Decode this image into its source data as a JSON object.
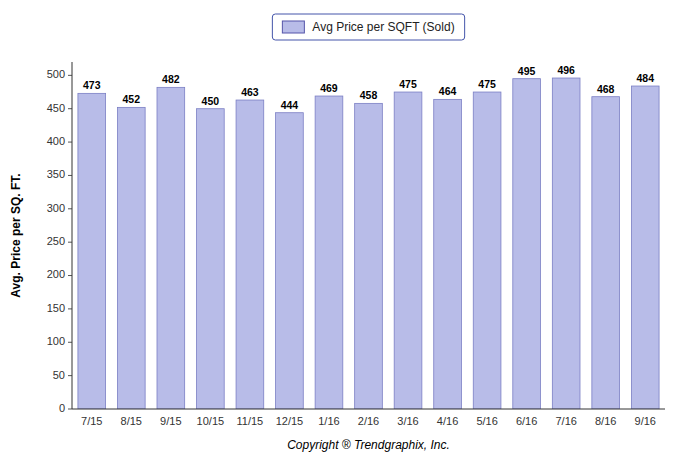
{
  "chart_data": {
    "type": "bar",
    "categories": [
      "7/15",
      "8/15",
      "9/15",
      "10/15",
      "11/15",
      "12/15",
      "1/16",
      "2/16",
      "3/16",
      "4/16",
      "5/16",
      "6/16",
      "7/16",
      "8/16",
      "9/16"
    ],
    "series": [
      {
        "name": "Avg Price per SQFT (Sold)",
        "color": "#b8bce8",
        "values": [
          473,
          452,
          482,
          450,
          463,
          444,
          469,
          458,
          475,
          464,
          475,
          495,
          496,
          468,
          484
        ]
      }
    ],
    "xlabel": "Copyright ® Trendgraphix, Inc.",
    "ylabel": "Avg. Price per SQ. FT.",
    "ylim": [
      0,
      520
    ],
    "yticks": [
      0,
      50,
      100,
      150,
      200,
      250,
      300,
      350,
      400,
      450,
      500
    ],
    "grid": false,
    "legend": "top",
    "data_labels": true
  }
}
